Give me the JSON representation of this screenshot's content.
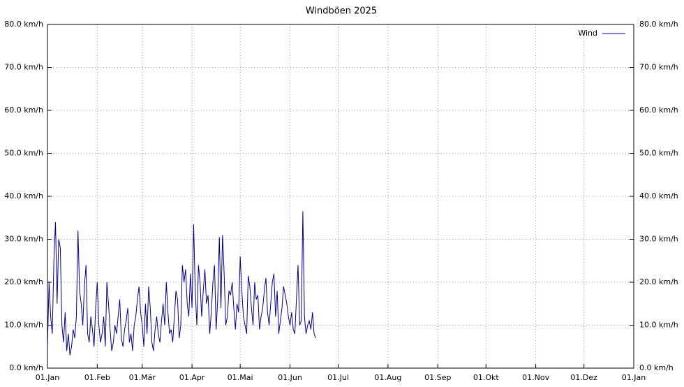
{
  "chart_data": {
    "type": "line",
    "title": "Windböen 2025",
    "x": [
      "2025-01-01",
      "2025-01-02",
      "2025-01-03",
      "2025-01-04",
      "2025-01-05",
      "2025-01-06",
      "2025-01-07",
      "2025-01-08",
      "2025-01-09",
      "2025-01-10",
      "2025-01-11",
      "2025-01-12",
      "2025-01-13",
      "2025-01-14",
      "2025-01-15",
      "2025-01-16",
      "2025-01-17",
      "2025-01-18",
      "2025-01-19",
      "2025-01-20",
      "2025-01-21",
      "2025-01-22",
      "2025-01-23",
      "2025-01-24",
      "2025-01-25",
      "2025-01-26",
      "2025-01-27",
      "2025-01-28",
      "2025-01-29",
      "2025-01-30",
      "2025-01-31",
      "2025-02-01",
      "2025-02-02",
      "2025-02-03",
      "2025-02-04",
      "2025-02-05",
      "2025-02-06",
      "2025-02-07",
      "2025-02-08",
      "2025-02-09",
      "2025-02-10",
      "2025-02-11",
      "2025-02-12",
      "2025-02-13",
      "2025-02-14",
      "2025-02-15",
      "2025-02-16",
      "2025-02-17",
      "2025-02-18",
      "2025-02-19",
      "2025-02-20",
      "2025-02-21",
      "2025-02-22",
      "2025-02-23",
      "2025-02-24",
      "2025-02-25",
      "2025-02-26",
      "2025-02-27",
      "2025-02-28",
      "2025-03-01",
      "2025-03-02",
      "2025-03-03",
      "2025-03-04",
      "2025-03-05",
      "2025-03-06",
      "2025-03-07",
      "2025-03-08",
      "2025-03-09",
      "2025-03-10",
      "2025-03-11",
      "2025-03-12",
      "2025-03-13",
      "2025-03-14",
      "2025-03-15",
      "2025-03-16",
      "2025-03-17",
      "2025-03-18",
      "2025-03-19",
      "2025-03-20",
      "2025-03-21",
      "2025-03-22",
      "2025-03-23",
      "2025-03-24",
      "2025-03-25",
      "2025-03-26",
      "2025-03-27",
      "2025-03-28",
      "2025-03-29",
      "2025-03-30",
      "2025-03-31",
      "2025-04-01",
      "2025-04-02",
      "2025-04-03",
      "2025-04-04",
      "2025-04-05",
      "2025-04-06",
      "2025-04-07",
      "2025-04-08",
      "2025-04-09",
      "2025-04-10",
      "2025-04-11",
      "2025-04-12",
      "2025-04-13",
      "2025-04-14",
      "2025-04-15",
      "2025-04-16",
      "2025-04-17",
      "2025-04-18",
      "2025-04-19",
      "2025-04-20",
      "2025-04-21",
      "2025-04-22",
      "2025-04-23",
      "2025-04-24",
      "2025-04-25",
      "2025-04-26",
      "2025-04-27",
      "2025-04-28",
      "2025-04-29",
      "2025-04-30",
      "2025-05-01",
      "2025-05-02",
      "2025-05-03",
      "2025-05-04",
      "2025-05-05",
      "2025-05-06",
      "2025-05-07",
      "2025-05-08",
      "2025-05-09",
      "2025-05-10",
      "2025-05-11",
      "2025-05-12",
      "2025-05-13",
      "2025-05-14",
      "2025-05-15",
      "2025-05-16",
      "2025-05-17",
      "2025-05-18",
      "2025-05-19",
      "2025-05-20",
      "2025-05-21",
      "2025-05-22",
      "2025-05-23",
      "2025-05-24",
      "2025-05-25",
      "2025-05-26",
      "2025-05-27",
      "2025-05-28",
      "2025-05-29",
      "2025-05-30",
      "2025-05-31",
      "2025-06-01",
      "2025-06-02",
      "2025-06-03",
      "2025-06-04",
      "2025-06-05",
      "2025-06-06",
      "2025-06-07",
      "2025-06-08",
      "2025-06-09",
      "2025-06-10",
      "2025-06-11",
      "2025-06-12",
      "2025-06-13",
      "2025-06-14",
      "2025-06-15",
      "2025-06-16",
      "2025-06-17"
    ],
    "series": [
      {
        "name": "Wind",
        "color": "#00008b",
        "values": [
          5,
          20,
          12,
          8,
          25,
          34,
          15,
          30,
          28,
          10,
          6,
          13,
          4,
          8,
          3,
          5,
          9,
          7,
          12,
          32,
          18,
          15,
          10,
          19,
          24,
          8,
          6,
          12,
          9,
          5,
          14,
          20,
          10,
          6,
          8,
          12,
          5,
          20,
          15,
          9,
          4,
          6,
          10,
          8,
          12,
          16,
          7,
          5,
          9,
          11,
          14,
          6,
          8,
          4,
          10,
          12,
          16,
          19,
          13,
          10,
          5,
          15,
          8,
          19,
          14,
          6,
          4,
          9,
          12,
          8,
          6,
          11,
          15,
          10,
          20,
          13,
          8,
          9,
          6,
          12,
          18,
          16,
          7,
          10,
          24,
          20,
          23,
          15,
          12,
          22,
          14,
          33.5,
          18,
          10,
          24,
          20,
          12,
          18,
          23,
          15,
          17,
          8,
          13,
          20,
          24,
          9,
          16,
          30.5,
          14,
          31,
          22,
          10,
          12,
          18,
          17,
          20,
          14,
          9,
          15,
          13,
          26,
          18,
          12,
          10,
          8,
          21.5,
          19,
          14,
          10,
          20,
          16,
          17,
          9,
          12,
          14,
          18,
          21,
          13,
          10,
          15,
          20,
          22,
          12,
          18,
          8,
          11,
          14,
          19,
          17,
          15,
          12,
          10,
          13,
          9,
          8,
          16,
          24,
          10,
          11,
          36.5,
          12,
          8,
          10,
          11,
          9,
          13,
          8,
          7
        ]
      }
    ],
    "xlim": [
      "2025-01-01",
      "2026-01-01"
    ],
    "xticks": [
      {
        "value": "2025-01-01",
        "label": "01.Jan"
      },
      {
        "value": "2025-02-01",
        "label": "01.Feb"
      },
      {
        "value": "2025-03-01",
        "label": "01.Mär"
      },
      {
        "value": "2025-04-01",
        "label": "01.Apr"
      },
      {
        "value": "2025-05-01",
        "label": "01.Mai"
      },
      {
        "value": "2025-06-01",
        "label": "01.Jun"
      },
      {
        "value": "2025-07-01",
        "label": "01.Jul"
      },
      {
        "value": "2025-08-01",
        "label": "01.Aug"
      },
      {
        "value": "2025-09-01",
        "label": "01.Sep"
      },
      {
        "value": "2025-10-01",
        "label": "01.Okt"
      },
      {
        "value": "2025-11-01",
        "label": "01.Nov"
      },
      {
        "value": "2025-12-01",
        "label": "01.Dez"
      },
      {
        "value": "2026-01-01",
        "label": "01.Jan"
      }
    ],
    "ylim": [
      0,
      80
    ],
    "yticks": [
      {
        "value": 0,
        "label": "0.0 km/h"
      },
      {
        "value": 10,
        "label": "10.0 km/h"
      },
      {
        "value": 20,
        "label": "20.0 km/h"
      },
      {
        "value": 30,
        "label": "30.0 km/h"
      },
      {
        "value": 40,
        "label": "40.0 km/h"
      },
      {
        "value": 50,
        "label": "50.0 km/h"
      },
      {
        "value": 60,
        "label": "60.0 km/h"
      },
      {
        "value": 70,
        "label": "70.0 km/h"
      },
      {
        "value": 80,
        "label": "80.0 km/h"
      }
    ],
    "grid": true,
    "legend": "top-right"
  }
}
